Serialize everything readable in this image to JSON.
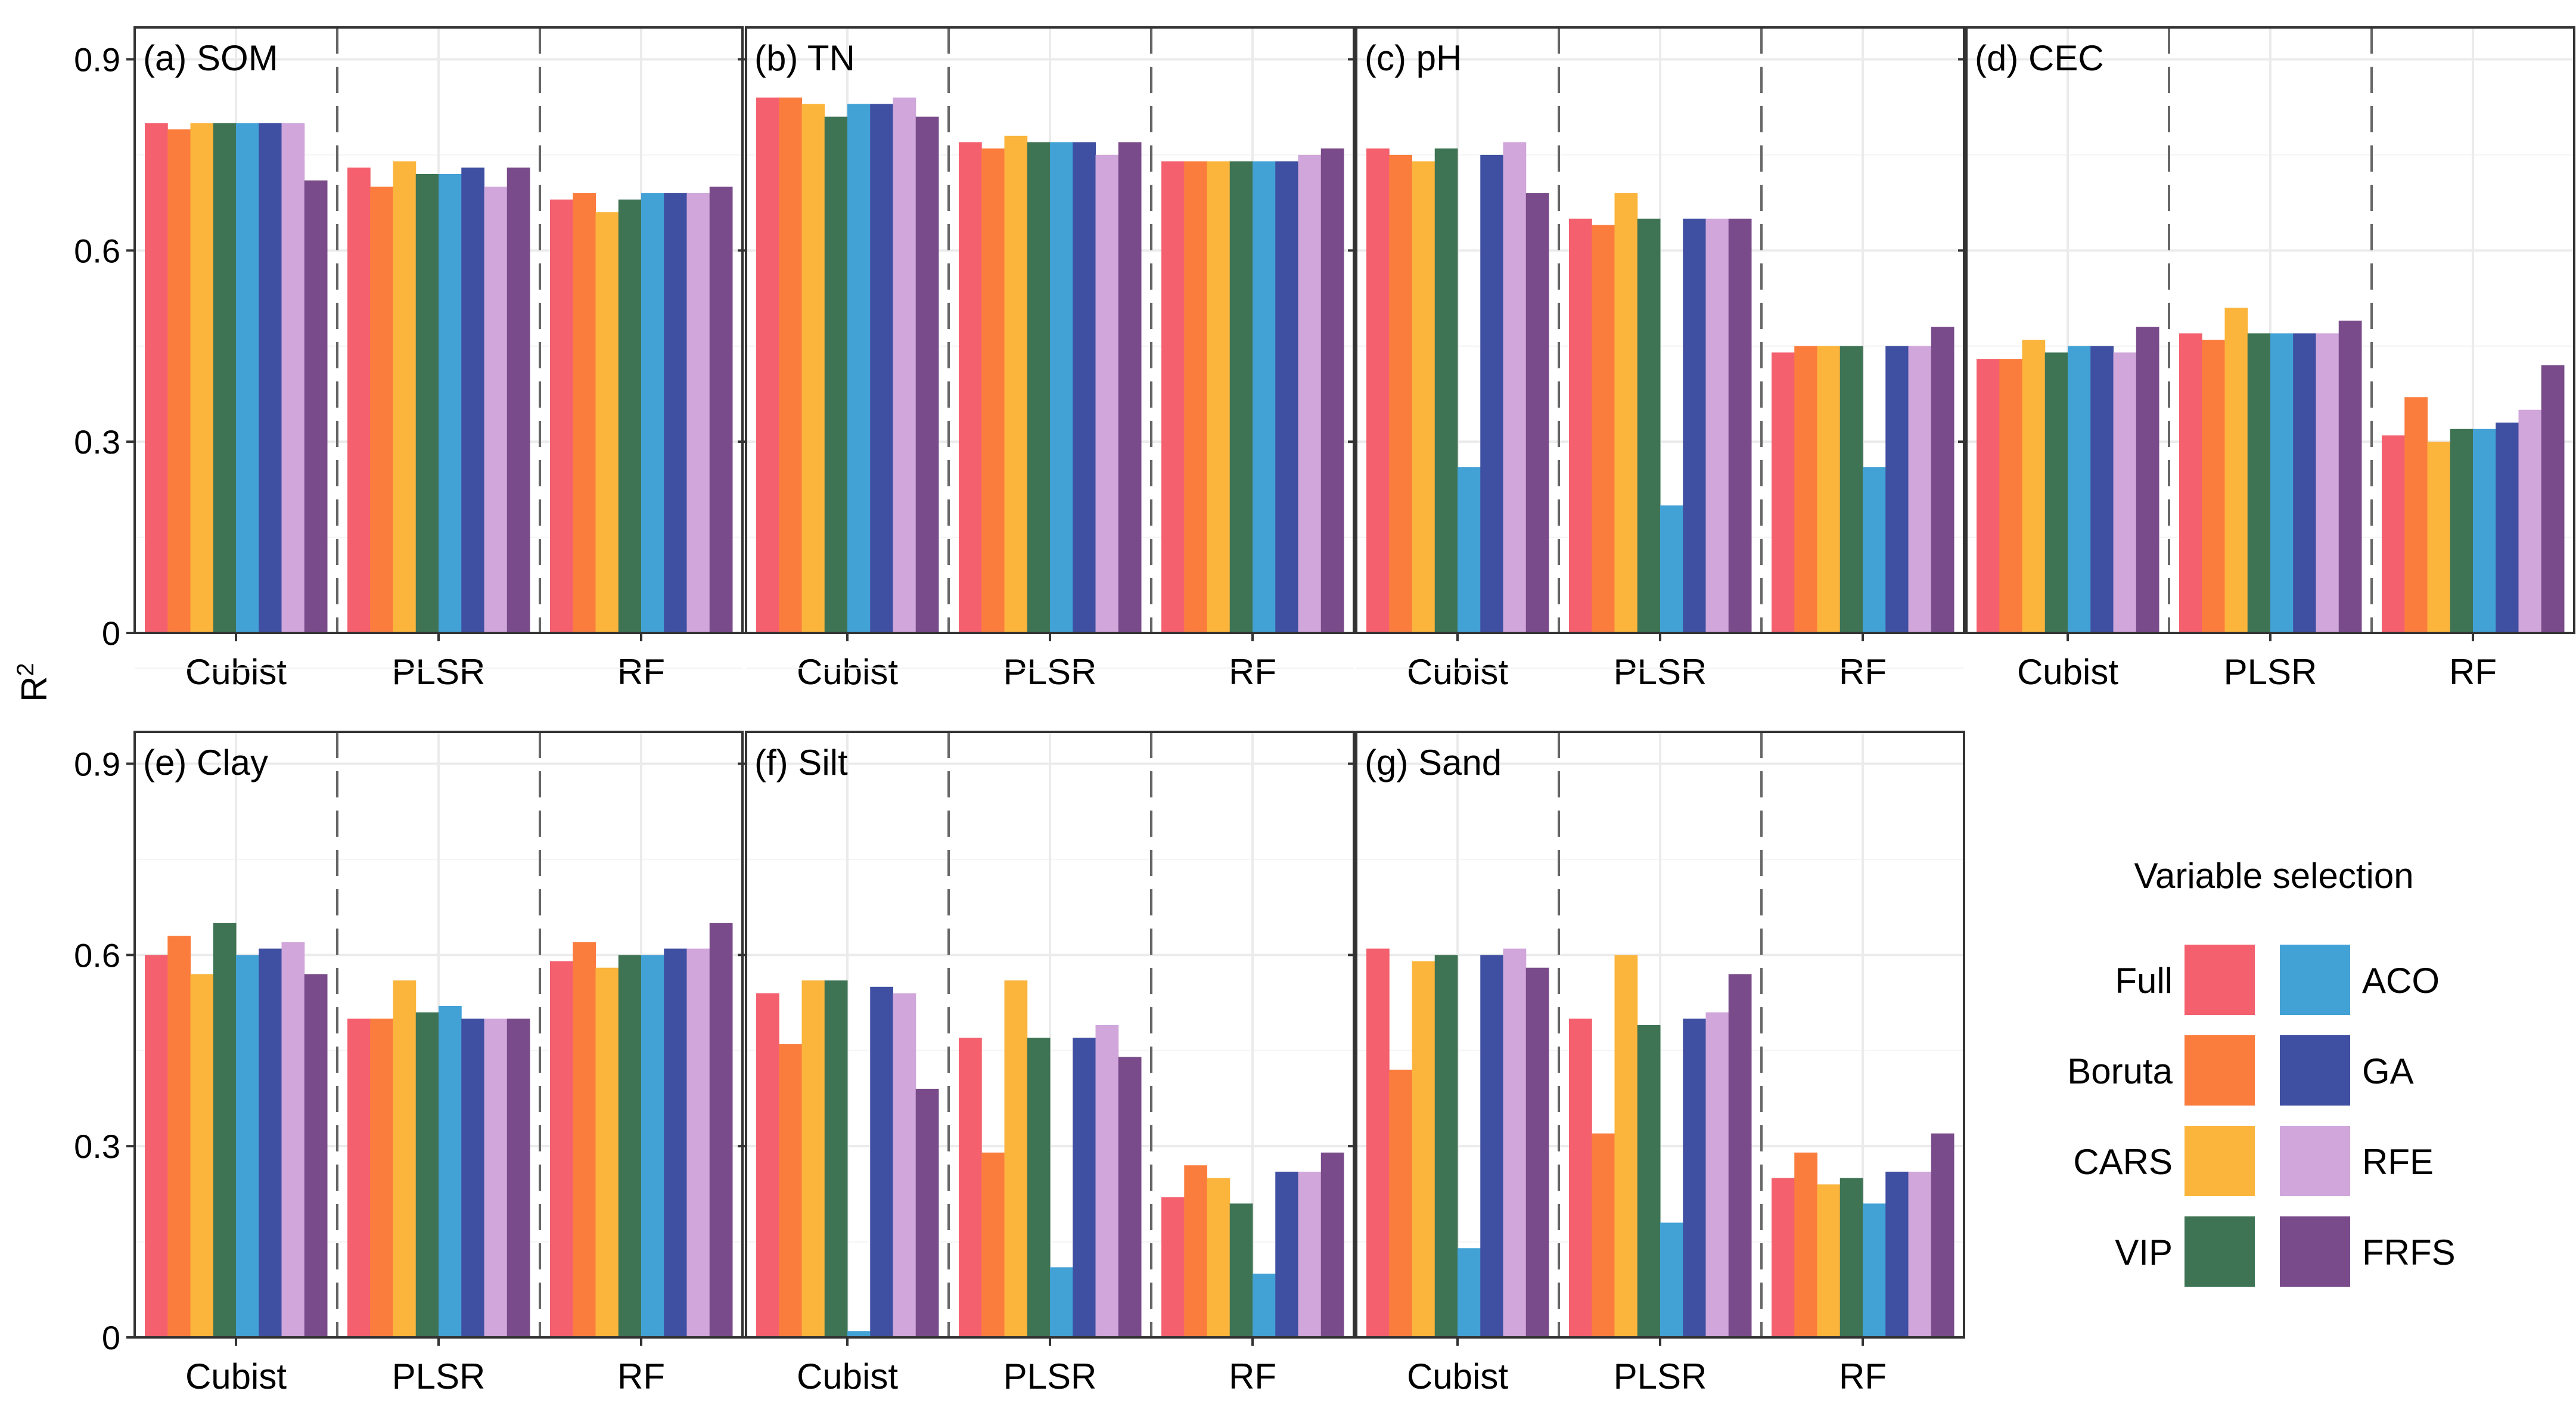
{
  "y_axis_label": "R",
  "y_axis_label_sup": "2",
  "legend": {
    "title": "Variable selection",
    "items": [
      {
        "label": "Full",
        "color": "#f4606e"
      },
      {
        "label": "Boruta",
        "color": "#fb7d3e"
      },
      {
        "label": "CARS",
        "color": "#fbb53c"
      },
      {
        "label": "VIP",
        "color": "#3e7454"
      },
      {
        "label": "ACO",
        "color": "#42a2d6"
      },
      {
        "label": "GA",
        "color": "#3f4fa1"
      },
      {
        "label": "RFE",
        "color": "#d0a6db"
      },
      {
        "label": "FRFS",
        "color": "#7a4b8a"
      }
    ]
  },
  "chart_data": [
    {
      "type": "bar",
      "title": "(a) SOM",
      "categories": [
        "Cubist",
        "PLSR",
        "RF"
      ],
      "ylim": [
        0,
        0.95
      ],
      "yticks": [
        "0",
        "0.3",
        "0.6",
        "0.9"
      ],
      "series": [
        {
          "name": "Full",
          "values": [
            0.8,
            0.73,
            0.68
          ]
        },
        {
          "name": "Boruta",
          "values": [
            0.79,
            0.7,
            0.69
          ]
        },
        {
          "name": "CARS",
          "values": [
            0.8,
            0.74,
            0.66
          ]
        },
        {
          "name": "VIP",
          "values": [
            0.8,
            0.72,
            0.68
          ]
        },
        {
          "name": "ACO",
          "values": [
            0.8,
            0.72,
            0.69
          ]
        },
        {
          "name": "GA",
          "values": [
            0.8,
            0.73,
            0.69
          ]
        },
        {
          "name": "RFE",
          "values": [
            0.8,
            0.7,
            0.69
          ]
        },
        {
          "name": "FRFS",
          "values": [
            0.71,
            0.73,
            0.7
          ]
        }
      ]
    },
    {
      "type": "bar",
      "title": "(b) TN",
      "categories": [
        "Cubist",
        "PLSR",
        "RF"
      ],
      "ylim": [
        0,
        0.95
      ],
      "yticks": [
        "0",
        "0.3",
        "0.6",
        "0.9"
      ],
      "series": [
        {
          "name": "Full",
          "values": [
            0.84,
            0.77,
            0.74
          ]
        },
        {
          "name": "Boruta",
          "values": [
            0.84,
            0.76,
            0.74
          ]
        },
        {
          "name": "CARS",
          "values": [
            0.83,
            0.78,
            0.74
          ]
        },
        {
          "name": "VIP",
          "values": [
            0.81,
            0.77,
            0.74
          ]
        },
        {
          "name": "ACO",
          "values": [
            0.83,
            0.77,
            0.74
          ]
        },
        {
          "name": "GA",
          "values": [
            0.83,
            0.77,
            0.74
          ]
        },
        {
          "name": "RFE",
          "values": [
            0.84,
            0.75,
            0.75
          ]
        },
        {
          "name": "FRFS",
          "values": [
            0.81,
            0.77,
            0.76
          ]
        }
      ]
    },
    {
      "type": "bar",
      "title": "(c) pH",
      "categories": [
        "Cubist",
        "PLSR",
        "RF"
      ],
      "ylim": [
        0,
        0.95
      ],
      "yticks": [
        "0",
        "0.3",
        "0.6",
        "0.9"
      ],
      "series": [
        {
          "name": "Full",
          "values": [
            0.76,
            0.65,
            0.44
          ]
        },
        {
          "name": "Boruta",
          "values": [
            0.75,
            0.64,
            0.45
          ]
        },
        {
          "name": "CARS",
          "values": [
            0.74,
            0.69,
            0.45
          ]
        },
        {
          "name": "VIP",
          "values": [
            0.76,
            0.65,
            0.45
          ]
        },
        {
          "name": "ACO",
          "values": [
            0.26,
            0.2,
            0.26
          ]
        },
        {
          "name": "GA",
          "values": [
            0.75,
            0.65,
            0.45
          ]
        },
        {
          "name": "RFE",
          "values": [
            0.77,
            0.65,
            0.45
          ]
        },
        {
          "name": "FRFS",
          "values": [
            0.69,
            0.65,
            0.48
          ]
        }
      ]
    },
    {
      "type": "bar",
      "title": "(d) CEC",
      "categories": [
        "Cubist",
        "PLSR",
        "RF"
      ],
      "ylim": [
        0,
        0.95
      ],
      "yticks": [
        "0",
        "0.3",
        "0.6",
        "0.9"
      ],
      "series": [
        {
          "name": "Full",
          "values": [
            0.43,
            0.47,
            0.31
          ]
        },
        {
          "name": "Boruta",
          "values": [
            0.43,
            0.46,
            0.37
          ]
        },
        {
          "name": "CARS",
          "values": [
            0.46,
            0.51,
            0.3
          ]
        },
        {
          "name": "VIP",
          "values": [
            0.44,
            0.47,
            0.32
          ]
        },
        {
          "name": "ACO",
          "values": [
            0.45,
            0.47,
            0.32
          ]
        },
        {
          "name": "GA",
          "values": [
            0.45,
            0.47,
            0.33
          ]
        },
        {
          "name": "RFE",
          "values": [
            0.44,
            0.47,
            0.35
          ]
        },
        {
          "name": "FRFS",
          "values": [
            0.48,
            0.49,
            0.42
          ]
        }
      ]
    },
    {
      "type": "bar",
      "title": "(e) Clay",
      "categories": [
        "Cubist",
        "PLSR",
        "RF"
      ],
      "ylim": [
        0,
        0.95
      ],
      "yticks": [
        "0",
        "0.3",
        "0.6",
        "0.9"
      ],
      "series": [
        {
          "name": "Full",
          "values": [
            0.6,
            0.5,
            0.59
          ]
        },
        {
          "name": "Boruta",
          "values": [
            0.63,
            0.5,
            0.62
          ]
        },
        {
          "name": "CARS",
          "values": [
            0.57,
            0.56,
            0.58
          ]
        },
        {
          "name": "VIP",
          "values": [
            0.65,
            0.51,
            0.6
          ]
        },
        {
          "name": "ACO",
          "values": [
            0.6,
            0.52,
            0.6
          ]
        },
        {
          "name": "GA",
          "values": [
            0.61,
            0.5,
            0.61
          ]
        },
        {
          "name": "RFE",
          "values": [
            0.62,
            0.5,
            0.61
          ]
        },
        {
          "name": "FRFS",
          "values": [
            0.57,
            0.5,
            0.65
          ]
        }
      ]
    },
    {
      "type": "bar",
      "title": "(f) Silt",
      "categories": [
        "Cubist",
        "PLSR",
        "RF"
      ],
      "ylim": [
        0,
        0.95
      ],
      "yticks": [
        "0",
        "0.3",
        "0.6",
        "0.9"
      ],
      "series": [
        {
          "name": "Full",
          "values": [
            0.54,
            0.47,
            0.22
          ]
        },
        {
          "name": "Boruta",
          "values": [
            0.46,
            0.29,
            0.27
          ]
        },
        {
          "name": "CARS",
          "values": [
            0.56,
            0.56,
            0.25
          ]
        },
        {
          "name": "VIP",
          "values": [
            0.56,
            0.47,
            0.21
          ]
        },
        {
          "name": "ACO",
          "values": [
            0.01,
            0.11,
            0.1
          ]
        },
        {
          "name": "GA",
          "values": [
            0.55,
            0.47,
            0.26
          ]
        },
        {
          "name": "RFE",
          "values": [
            0.54,
            0.49,
            0.26
          ]
        },
        {
          "name": "FRFS",
          "values": [
            0.39,
            0.44,
            0.29
          ]
        }
      ]
    },
    {
      "type": "bar",
      "title": "(g) Sand",
      "categories": [
        "Cubist",
        "PLSR",
        "RF"
      ],
      "ylim": [
        0,
        0.95
      ],
      "yticks": [
        "0",
        "0.3",
        "0.6",
        "0.9"
      ],
      "series": [
        {
          "name": "Full",
          "values": [
            0.61,
            0.5,
            0.25
          ]
        },
        {
          "name": "Boruta",
          "values": [
            0.42,
            0.32,
            0.29
          ]
        },
        {
          "name": "CARS",
          "values": [
            0.59,
            0.6,
            0.24
          ]
        },
        {
          "name": "VIP",
          "values": [
            0.6,
            0.49,
            0.25
          ]
        },
        {
          "name": "ACO",
          "values": [
            0.14,
            0.18,
            0.21
          ]
        },
        {
          "name": "GA",
          "values": [
            0.6,
            0.5,
            0.26
          ]
        },
        {
          "name": "RFE",
          "values": [
            0.61,
            0.51,
            0.26
          ]
        },
        {
          "name": "FRFS",
          "values": [
            0.58,
            0.57,
            0.32
          ]
        }
      ]
    }
  ]
}
